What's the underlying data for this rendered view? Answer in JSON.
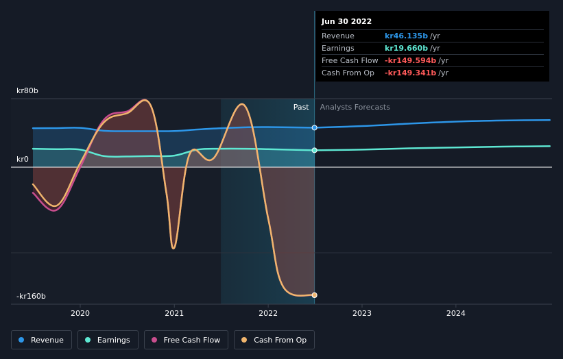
{
  "chart_data": {
    "type": "area",
    "y_axis_labels": [
      "kr80b",
      "kr0",
      "-kr160b"
    ],
    "ylim": [
      -160,
      80
    ],
    "x_ticks": [
      "2020",
      "2021",
      "2022",
      "2023",
      "2024"
    ],
    "region_labels": {
      "past": "Past",
      "forecast": "Analysts Forecasts"
    },
    "colors": {
      "Revenue": "#2d96e8",
      "Earnings": "#5ee8d3",
      "Free Cash Flow": "#c94e8e",
      "Cash From Op": "#f0b56d"
    },
    "series": [
      {
        "name": "Revenue",
        "x": [
          "2019-07-01",
          "2019-10-01",
          "2020-01-01",
          "2020-04-01",
          "2020-07-01",
          "2020-10-01",
          "2021-01-01",
          "2021-04-01",
          "2021-07-01",
          "2021-10-01",
          "2022-01-01",
          "2022-06-30",
          "2023-01-01",
          "2023-07-01",
          "2024-01-01",
          "2024-07-01",
          "2024-12-31"
        ],
        "y": [
          45.5,
          45.6,
          45.9,
          42.5,
          42.0,
          42.0,
          42.2,
          44.0,
          45.5,
          46.5,
          46.8,
          46.1,
          48.0,
          50.8,
          53.2,
          54.5,
          55.0
        ]
      },
      {
        "name": "Earnings",
        "x": [
          "2019-07-01",
          "2019-10-01",
          "2020-01-01",
          "2020-04-01",
          "2020-07-01",
          "2020-10-01",
          "2021-01-01",
          "2021-04-01",
          "2021-07-01",
          "2021-10-01",
          "2022-01-01",
          "2022-06-30",
          "2023-01-01",
          "2023-07-01",
          "2024-01-01",
          "2024-07-01",
          "2024-12-31"
        ],
        "y": [
          21.5,
          21.0,
          20.5,
          13.0,
          12.5,
          13.0,
          13.5,
          20.5,
          21.5,
          21.5,
          21.0,
          19.7,
          20.5,
          22.0,
          23.0,
          24.0,
          24.5
        ]
      },
      {
        "name": "Free Cash Flow",
        "x": [
          "2019-07-01",
          "2019-10-01",
          "2020-01-01",
          "2020-04-01",
          "2020-07-01",
          "2020-10-01",
          "2020-12-01",
          "2021-01-01",
          "2021-03-01",
          "2021-06-01",
          "2021-10-01",
          "2022-01-01",
          "2022-03-01",
          "2022-06-30"
        ],
        "y": [
          -30,
          -50,
          0,
          55,
          65,
          72,
          -30,
          -94,
          15,
          10,
          72,
          -60,
          -140,
          -149.594
        ]
      },
      {
        "name": "Cash From Op",
        "x": [
          "2019-07-01",
          "2019-10-01",
          "2020-01-01",
          "2020-04-01",
          "2020-07-01",
          "2020-10-01",
          "2020-12-01",
          "2021-01-01",
          "2021-03-01",
          "2021-06-01",
          "2021-10-01",
          "2022-01-01",
          "2022-03-01",
          "2022-06-30"
        ],
        "y": [
          -20,
          -45,
          5,
          52,
          63,
          72,
          -30,
          -94,
          15,
          10,
          72,
          -60,
          -140,
          -149.341
        ]
      }
    ],
    "tooltip": {
      "date": "Jun 30 2022",
      "rows": [
        {
          "name": "Revenue",
          "value": "kr46.135b",
          "unit": "/yr",
          "color": "#2d96e8"
        },
        {
          "name": "Earnings",
          "value": "kr19.660b",
          "unit": "/yr",
          "color": "#5ee8d3"
        },
        {
          "name": "Free Cash Flow",
          "value": "-kr149.594b",
          "unit": "/yr",
          "color": "#ff5a5a"
        },
        {
          "name": "Cash From Op",
          "value": "-kr149.341b",
          "unit": "/yr",
          "color": "#ff5a5a"
        }
      ]
    },
    "legend": [
      {
        "name": "Revenue",
        "color": "#2d96e8"
      },
      {
        "name": "Earnings",
        "color": "#5ee8d3"
      },
      {
        "name": "Free Cash Flow",
        "color": "#c94e8e"
      },
      {
        "name": "Cash From Op",
        "color": "#f0b56d"
      }
    ]
  }
}
